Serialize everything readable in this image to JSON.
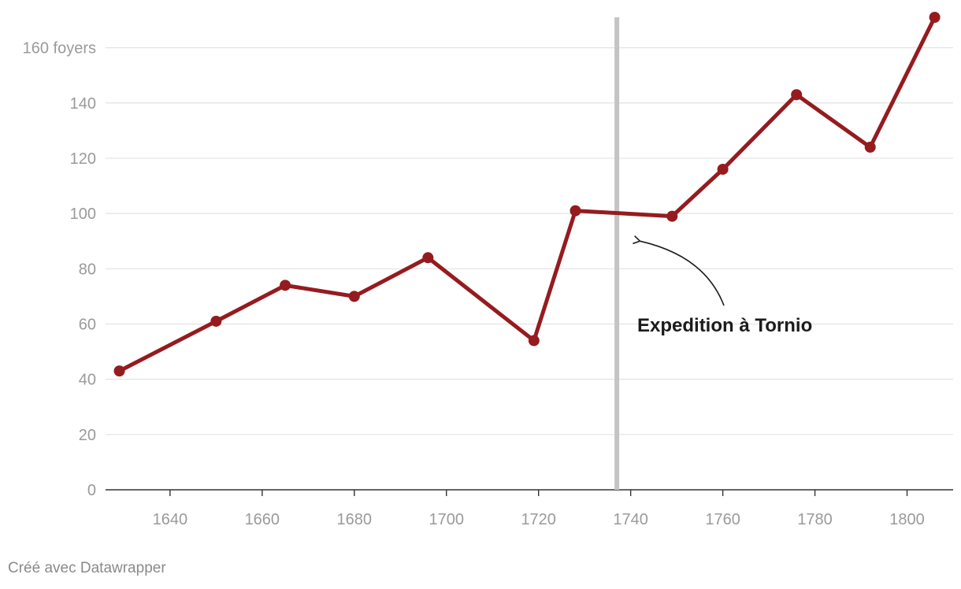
{
  "chart_data": {
    "type": "line",
    "x": [
      1629,
      1650,
      1665,
      1680,
      1696,
      1719,
      1728,
      1749,
      1760,
      1776,
      1792,
      1806
    ],
    "series": [
      {
        "values": [
          43,
          61,
          74,
          70,
          84,
          54,
          101,
          99,
          116,
          143,
          124,
          171
        ],
        "color": "#951b1f"
      }
    ],
    "xlim": [
      1626,
      1810
    ],
    "ylim": [
      0,
      171
    ],
    "x_ticks": [
      1640,
      1660,
      1680,
      1700,
      1720,
      1740,
      1760,
      1780,
      1800
    ],
    "y_ticks": [
      {
        "value": 0,
        "label": "0"
      },
      {
        "value": 20,
        "label": "20"
      },
      {
        "value": 40,
        "label": "40"
      },
      {
        "value": 60,
        "label": "60"
      },
      {
        "value": 80,
        "label": "80"
      },
      {
        "value": 100,
        "label": "100"
      },
      {
        "value": 120,
        "label": "120"
      },
      {
        "value": 140,
        "label": "140"
      },
      {
        "value": 160,
        "label": "160 foyers"
      }
    ],
    "grid": true,
    "reference_line": {
      "x": 1737,
      "color": "#c4c4c4"
    },
    "annotation": {
      "text": "Expedition à Tornio",
      "arrow_target": {
        "x": 1742,
        "y": 90
      }
    },
    "colors": {
      "grid": "#e3e3e3",
      "axis": "#333333",
      "tick_text": "#9a9a9a"
    }
  },
  "footer": {
    "credit": "Créé avec Datawrapper"
  }
}
